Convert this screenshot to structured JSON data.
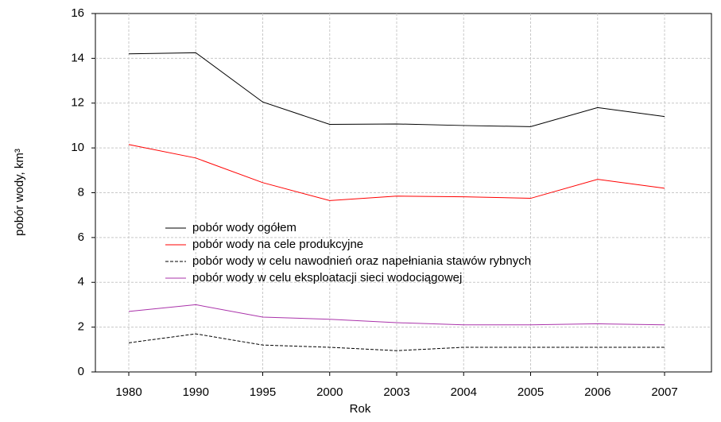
{
  "chart_data": {
    "type": "line",
    "x_label": "Rok",
    "y_label": "pobór wody, km³",
    "categories": [
      "1980",
      "1990",
      "1995",
      "2000",
      "2003",
      "2004",
      "2005",
      "2006",
      "2007"
    ],
    "series": [
      {
        "name": "pobór wody ogółem",
        "color": "#000000",
        "dash": false,
        "values": [
          14.2,
          14.25,
          12.05,
          11.05,
          11.07,
          11.0,
          10.95,
          11.8,
          11.4
        ]
      },
      {
        "name": "pobór wody na cele produkcyjne",
        "color": "#ff0000",
        "dash": false,
        "values": [
          10.15,
          9.55,
          8.45,
          7.65,
          7.85,
          7.82,
          7.75,
          8.6,
          8.2
        ]
      },
      {
        "name": "pobór wody w celu nawodnień oraz napełniania stawów rybnych",
        "color": "#000000",
        "dash": true,
        "values": [
          1.3,
          1.7,
          1.2,
          1.1,
          0.95,
          1.1,
          1.1,
          1.1,
          1.1
        ]
      },
      {
        "name": "pobór wody w celu eksploatacji sieci wodociągowej",
        "color": "#aa33aa",
        "dash": false,
        "values": [
          2.7,
          3.0,
          2.45,
          2.35,
          2.2,
          2.1,
          2.1,
          2.15,
          2.1
        ]
      }
    ],
    "ylim": [
      0,
      16
    ],
    "yticks": [
      0,
      2,
      4,
      6,
      8,
      10,
      12,
      14,
      16
    ],
    "grid": true
  }
}
